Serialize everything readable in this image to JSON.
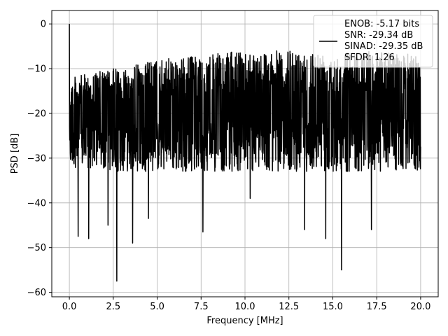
{
  "chart_data": {
    "type": "line",
    "title": "",
    "xlabel": "Frequency [MHz]",
    "ylabel": "PSD [dB]",
    "xlim": [
      -1.0,
      21.0
    ],
    "ylim": [
      -61.0,
      3.0
    ],
    "x_ticks": [
      0.0,
      2.5,
      5.0,
      7.5,
      10.0,
      12.5,
      15.0,
      17.5,
      20.0
    ],
    "x_tick_labels": [
      "0.0",
      "2.5",
      "5.0",
      "7.5",
      "10.0",
      "12.5",
      "15.0",
      "17.5",
      "20.0"
    ],
    "y_ticks": [
      0,
      -10,
      -20,
      -30,
      -40,
      -50,
      -60
    ],
    "y_tick_labels": [
      "0",
      "−10",
      "−20",
      "−30",
      "−40",
      "−50",
      "−60"
    ],
    "grid": true,
    "legend_position": "top-right",
    "legend_entries": [
      "ENOB: -5.17 bits",
      "SNR: -29.34 dB",
      "SINAD: -29.35 dB",
      "SFDR: 1.26"
    ],
    "series": [
      {
        "color": "#000000",
        "description": "dense noise PSD, roughly 0 to 20 MHz",
        "x_range": [
          0.0,
          20.0
        ],
        "upper_envelope": [
          [
            0.0,
            -12
          ],
          [
            2.5,
            -10
          ],
          [
            5.0,
            -8
          ],
          [
            7.5,
            -7
          ],
          [
            10.0,
            -6
          ],
          [
            12.5,
            -6
          ],
          [
            15.0,
            -6
          ],
          [
            17.5,
            -6
          ],
          [
            20.0,
            -7
          ]
        ],
        "lower_envelope": [
          [
            0.0,
            -32
          ],
          [
            2.5,
            -33
          ],
          [
            5.0,
            -33
          ],
          [
            7.5,
            -33
          ],
          [
            10.0,
            -33
          ],
          [
            12.5,
            -33
          ],
          [
            15.0,
            -33
          ],
          [
            17.5,
            -33
          ],
          [
            20.0,
            -33
          ]
        ],
        "spikes": [
          {
            "x": 0.0,
            "y": 0.0
          },
          {
            "x": 0.5,
            "y": -47.5
          },
          {
            "x": 1.1,
            "y": -48.0
          },
          {
            "x": 2.2,
            "y": -45.0
          },
          {
            "x": 2.7,
            "y": -57.5
          },
          {
            "x": 3.6,
            "y": -49.0
          },
          {
            "x": 4.5,
            "y": -43.5
          },
          {
            "x": 7.6,
            "y": -46.5
          },
          {
            "x": 10.3,
            "y": -39.0
          },
          {
            "x": 13.4,
            "y": -46.0
          },
          {
            "x": 14.6,
            "y": -48.0
          },
          {
            "x": 15.5,
            "y": -55.0
          },
          {
            "x": 17.2,
            "y": -46.0
          }
        ]
      }
    ]
  }
}
